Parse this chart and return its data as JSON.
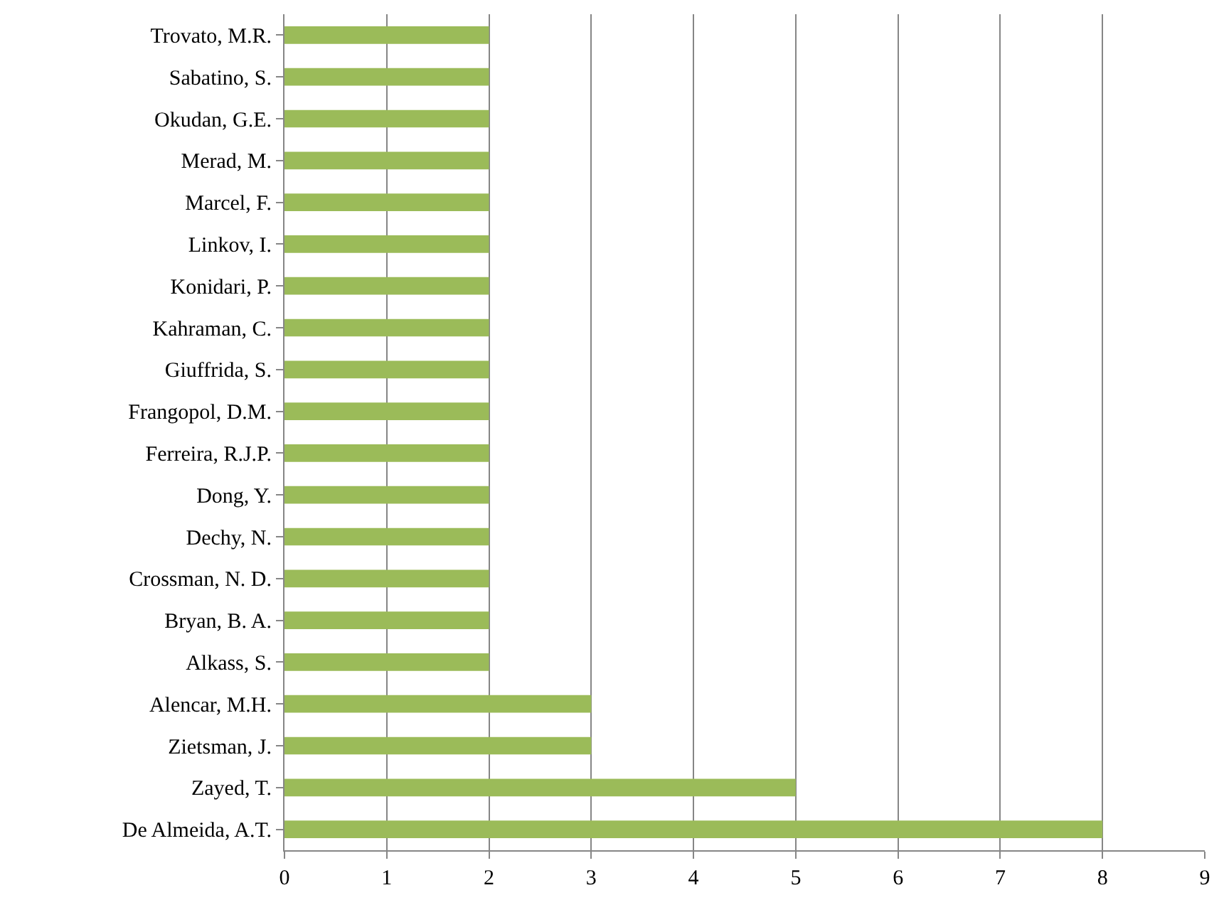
{
  "chart_data": {
    "type": "bar",
    "orientation": "horizontal",
    "categories": [
      "Trovato, M.R.",
      "Sabatino, S.",
      "Okudan, G.E.",
      "Merad, M.",
      "Marcel, F.",
      "Linkov, I.",
      "Konidari, P.",
      "Kahraman, C.",
      "Giuffrida, S.",
      "Frangopol, D.M.",
      "Ferreira, R.J.P.",
      "Dong, Y.",
      "Dechy, N.",
      "Crossman, N. D.",
      "Bryan, B. A.",
      "Alkass, S.",
      "Alencar, M.H.",
      "Zietsman, J.",
      "Zayed, T.",
      "De Almeida, A.T."
    ],
    "values": [
      2,
      2,
      2,
      2,
      2,
      2,
      2,
      2,
      2,
      2,
      2,
      2,
      2,
      2,
      2,
      2,
      3,
      3,
      5,
      8
    ],
    "color": "#9bbb59",
    "xlim": [
      0,
      9
    ],
    "xticks": [
      0,
      1,
      2,
      3,
      4,
      5,
      6,
      7,
      8,
      9
    ],
    "grid": "x"
  }
}
